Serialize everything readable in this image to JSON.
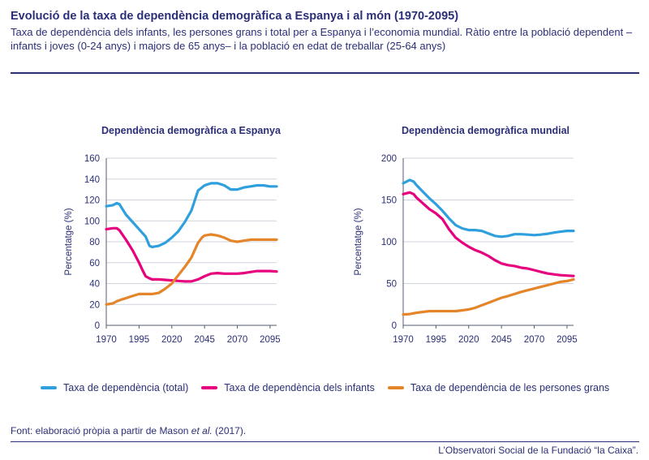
{
  "title": "Evolució de la taxa de dependència demogràfica a Espanya i al món (1970-2095)",
  "subtitle": "Taxa de dependència dels infants, les persones grans i total per a Espanya i l’economia mundial. Ràtio entre la població dependent –infants i joves (0-24 anys) i majors de 65 anys– i la població en edat de treballar (25-64 anys)",
  "source_prefix": "Font: elaboració pròpia a partir de Mason ",
  "source_italic": "et al.",
  "source_suffix": " (2017).",
  "credit": "L’Observatori Social de la Fundació “la Caixa”.",
  "legend": [
    {
      "label": "Taxa de dependència (total)",
      "color": "#2fa0dd"
    },
    {
      "label": "Taxa de dependència dels infants",
      "color": "#e6007e"
    },
    {
      "label": "Taxa de dependència de les persones grans",
      "color": "#e5852a"
    }
  ],
  "chart_data": [
    {
      "type": "line",
      "title": "Dependència demogràfica a Espanya",
      "ylabel": "Percentatge (%)",
      "xlabel": "",
      "xlim": [
        1970,
        2100
      ],
      "ylim": [
        0,
        160
      ],
      "xticks": [
        "1970",
        "1995",
        "2020",
        "2045",
        "2070",
        "2095"
      ],
      "yticks": [
        "0",
        "20",
        "40",
        "60",
        "80",
        "100",
        "120",
        "140",
        "160"
      ],
      "grid": "horizontal",
      "series": [
        {
          "name": "Taxa de dependència (total)",
          "color": "#2fa0dd",
          "x": [
            1970,
            1975,
            1978,
            1980,
            1985,
            1990,
            1995,
            2000,
            2003,
            2005,
            2010,
            2015,
            2020,
            2025,
            2030,
            2035,
            2040,
            2045,
            2050,
            2055,
            2060,
            2065,
            2070,
            2075,
            2080,
            2085,
            2090,
            2095,
            2100
          ],
          "y": [
            114,
            115,
            117,
            116,
            106,
            99,
            92,
            85,
            76,
            75,
            76,
            79,
            84,
            90,
            99,
            110,
            129,
            134,
            136,
            136,
            134,
            130,
            130,
            132,
            133,
            134,
            134,
            133,
            133
          ]
        },
        {
          "name": "Taxa de dependència dels infants",
          "color": "#e6007e",
          "x": [
            1970,
            1975,
            1978,
            1980,
            1985,
            1990,
            1995,
            1998,
            2000,
            2003,
            2005,
            2010,
            2015,
            2020,
            2025,
            2030,
            2035,
            2040,
            2045,
            2050,
            2055,
            2060,
            2065,
            2070,
            2075,
            2080,
            2085,
            2090,
            2095,
            2100
          ],
          "y": [
            92,
            93,
            93,
            91,
            82,
            72,
            60,
            52,
            47,
            45,
            44,
            44,
            43.5,
            43,
            42.5,
            42,
            42,
            44,
            47,
            49.5,
            50,
            49.5,
            49.5,
            49.5,
            50,
            51,
            52,
            52,
            52,
            51.5
          ]
        },
        {
          "name": "Taxa de dependència de les persones grans",
          "color": "#e5852a",
          "x": [
            1970,
            1975,
            1978,
            1980,
            1985,
            1990,
            1995,
            2000,
            2005,
            2010,
            2015,
            2020,
            2025,
            2030,
            2035,
            2040,
            2043,
            2045,
            2050,
            2055,
            2060,
            2065,
            2070,
            2075,
            2080,
            2085,
            2090,
            2095,
            2100
          ],
          "y": [
            20,
            21,
            23,
            24,
            26,
            28,
            30,
            30,
            30,
            31,
            35,
            40,
            48,
            56,
            65,
            79,
            84,
            86,
            87,
            86,
            84,
            81,
            80,
            81,
            82,
            82,
            82,
            82,
            82
          ]
        }
      ]
    },
    {
      "type": "line",
      "title": "Dependència demogràfica mundial",
      "ylabel": "Percentatge (%)",
      "xlabel": "",
      "xlim": [
        1970,
        2100
      ],
      "ylim": [
        0,
        200
      ],
      "xticks": [
        "1970",
        "1995",
        "2020",
        "2045",
        "2070",
        "2095"
      ],
      "yticks": [
        "0",
        "50",
        "100",
        "150",
        "200"
      ],
      "grid": "horizontal",
      "series": [
        {
          "name": "Taxa de dependència (total)",
          "color": "#2fa0dd",
          "x": [
            1970,
            1975,
            1978,
            1980,
            1985,
            1990,
            1995,
            2000,
            2005,
            2010,
            2015,
            2020,
            2025,
            2030,
            2035,
            2040,
            2045,
            2050,
            2055,
            2060,
            2065,
            2070,
            2075,
            2080,
            2085,
            2090,
            2095,
            2100
          ],
          "y": [
            170,
            174,
            172,
            168,
            160,
            152,
            145,
            137,
            128,
            120,
            116,
            114,
            114,
            113,
            110,
            107,
            106,
            107,
            109,
            109,
            108.5,
            108,
            108.5,
            109.5,
            111,
            112,
            113,
            113
          ]
        },
        {
          "name": "Taxa de dependència dels infants",
          "color": "#e6007e",
          "x": [
            1970,
            1975,
            1978,
            1980,
            1985,
            1990,
            1995,
            2000,
            2005,
            2010,
            2015,
            2020,
            2025,
            2030,
            2035,
            2040,
            2045,
            2050,
            2055,
            2060,
            2065,
            2070,
            2075,
            2080,
            2085,
            2090,
            2095,
            2100
          ],
          "y": [
            157,
            159,
            157,
            153,
            146,
            139,
            134,
            127,
            115,
            105,
            99,
            94,
            90,
            87,
            83,
            78,
            74,
            72,
            71,
            69,
            68,
            66,
            64,
            62,
            61,
            60,
            59.5,
            59
          ]
        },
        {
          "name": "Taxa de dependència de les persones grans",
          "color": "#e5852a",
          "x": [
            1970,
            1975,
            1980,
            1985,
            1990,
            1995,
            2000,
            2005,
            2010,
            2015,
            2020,
            2025,
            2030,
            2035,
            2040,
            2045,
            2050,
            2055,
            2060,
            2065,
            2070,
            2075,
            2080,
            2085,
            2090,
            2095,
            2100
          ],
          "y": [
            13,
            13.5,
            15,
            16,
            17,
            17,
            17,
            17,
            17,
            18,
            19,
            21,
            24,
            27,
            30,
            33,
            35,
            37.5,
            40,
            42,
            44,
            46,
            48,
            50,
            52,
            53,
            55
          ]
        }
      ]
    }
  ]
}
